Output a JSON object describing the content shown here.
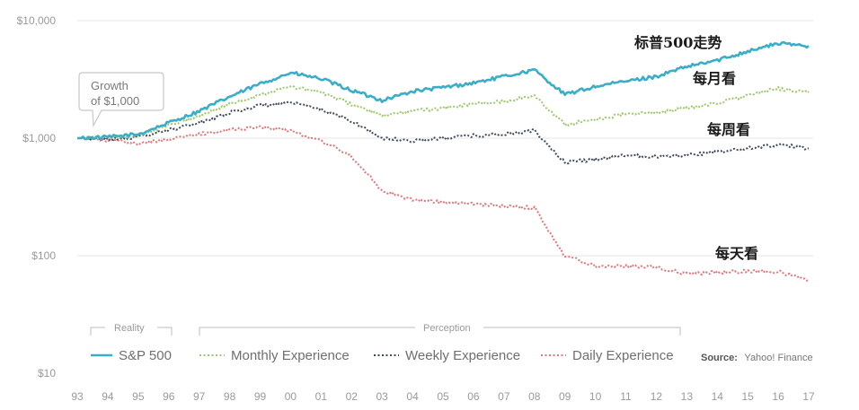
{
  "chart_data": {
    "type": "line",
    "y_scale": "log",
    "ylim": [
      10,
      10000
    ],
    "y_ticks": [
      "$10,000",
      "$1,000",
      "$100",
      "$10"
    ],
    "x_ticks": [
      "93",
      "94",
      "95",
      "96",
      "97",
      "98",
      "99",
      "00",
      "01",
      "02",
      "03",
      "04",
      "05",
      "06",
      "07",
      "08",
      "09",
      "10",
      "11",
      "12",
      "13",
      "14",
      "15",
      "16",
      "17"
    ],
    "x": [
      1993,
      1994,
      1995,
      1996,
      1997,
      1998,
      1999,
      2000,
      2001,
      2002,
      2003,
      2004,
      2005,
      2006,
      2007,
      2008,
      2009,
      2010,
      2011,
      2012,
      2013,
      2014,
      2015,
      2016,
      2017
    ],
    "series": [
      {
        "name": "S&P 500",
        "color": "#3aaec8",
        "dash": "solid",
        "values": [
          1000,
          1020,
          1080,
          1350,
          1700,
          2250,
          2900,
          3600,
          3200,
          2550,
          2100,
          2500,
          2700,
          2950,
          3350,
          3800,
          2350,
          2750,
          3050,
          3350,
          4050,
          4600,
          5500,
          6400,
          6100
        ]
      },
      {
        "name": "Monthly Experience",
        "color": "#9cc96b",
        "dash": "dotted",
        "values": [
          1000,
          1010,
          1060,
          1280,
          1550,
          1950,
          2350,
          2750,
          2450,
          1950,
          1550,
          1700,
          1800,
          1950,
          2050,
          2300,
          1300,
          1450,
          1600,
          1650,
          1800,
          2000,
          2300,
          2650,
          2450
        ]
      },
      {
        "name": "Weekly Experience",
        "color": "#3f4a5c",
        "dash": "dotted",
        "values": [
          1000,
          990,
          1020,
          1170,
          1350,
          1650,
          1900,
          2000,
          1750,
          1400,
          1000,
          950,
          1000,
          1050,
          1080,
          1150,
          620,
          660,
          720,
          700,
          720,
          760,
          820,
          880,
          820
        ]
      },
      {
        "name": "Daily Experience",
        "color": "#e0777a",
        "dash": "dotted",
        "values": [
          1000,
          960,
          900,
          980,
          1080,
          1180,
          1250,
          1150,
          950,
          700,
          360,
          300,
          285,
          275,
          265,
          255,
          100,
          82,
          82,
          80,
          70,
          72,
          74,
          73,
          62
        ]
      }
    ],
    "series_labels": [
      "标普500走势",
      "每月看",
      "每周看",
      "每天看"
    ],
    "legend": {
      "group_reality": "Reality",
      "group_perception": "Perception",
      "placement": "bottom",
      "source_label": "Source:",
      "source_text": "Yahoo! Finance"
    },
    "annotation": [
      "Growth",
      "of $1,000"
    ]
  }
}
